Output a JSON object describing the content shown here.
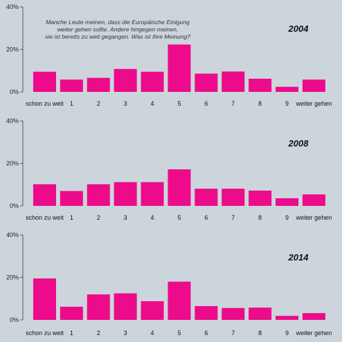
{
  "question_lines": [
    "Manche Leute meinen, dass die Europäische Einigung",
    "weiter gehen sollte. Andere hingegen meinen,",
    "sie ist bereits zu weit gegangen. Was ist Ihre Meinung?"
  ],
  "colors": {
    "bar": "#ec0b8a",
    "background": "#cdd5dc"
  },
  "chart_data": [
    {
      "type": "bar",
      "title": "2004",
      "categories": [
        "schon zu weit",
        "1",
        "2",
        "3",
        "4",
        "5",
        "6",
        "7",
        "8",
        "9",
        "weiter gehen"
      ],
      "values": [
        9.5,
        5.8,
        6.6,
        10.8,
        9.5,
        22.3,
        8.6,
        9.6,
        6.2,
        2.4,
        5.8
      ],
      "ylim": [
        0,
        40
      ],
      "yticks": [
        "0%",
        "20%",
        "40%"
      ],
      "xlabel": "",
      "ylabel": "",
      "grid": false
    },
    {
      "type": "bar",
      "title": "2008",
      "categories": [
        "schon zu weit",
        "1",
        "2",
        "3",
        "4",
        "5",
        "6",
        "7",
        "8",
        "9",
        "weiter gehen"
      ],
      "values": [
        10.2,
        7.0,
        10.2,
        11.2,
        11.2,
        17.2,
        8.1,
        8.1,
        7.2,
        3.6,
        5.4
      ],
      "ylim": [
        0,
        40
      ],
      "yticks": [
        "0%",
        "20%",
        "40%"
      ],
      "xlabel": "",
      "ylabel": "",
      "grid": false
    },
    {
      "type": "bar",
      "title": "2014",
      "categories": [
        "schon zu weit",
        "1",
        "2",
        "3",
        "4",
        "5",
        "6",
        "7",
        "8",
        "9",
        "weiter gehen"
      ],
      "values": [
        19.5,
        6.2,
        12.0,
        12.5,
        8.8,
        18.0,
        6.5,
        5.6,
        5.8,
        1.9,
        3.2
      ],
      "ylim": [
        0,
        40
      ],
      "yticks": [
        "0%",
        "20%",
        "40%"
      ],
      "xlabel": "",
      "ylabel": "",
      "grid": false
    }
  ]
}
